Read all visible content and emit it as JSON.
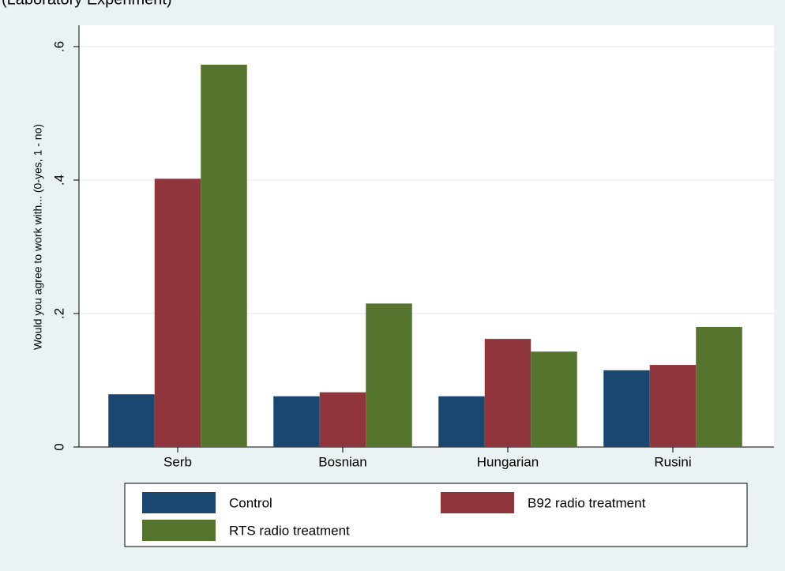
{
  "chart_data": {
    "type": "bar",
    "subtitle": "(Laboratory Experiment)",
    "y_label": "Would you agree to work with... (0-yes, 1 - no)",
    "categories": [
      "Serb",
      "Bosnian",
      "Hungarian",
      "Rusini"
    ],
    "series": [
      {
        "name": "Control",
        "color": "#1a476f",
        "values": [
          0.079,
          0.076,
          0.076,
          0.115
        ]
      },
      {
        "name": "B92 radio treatment",
        "color": "#90353b",
        "values": [
          0.402,
          0.082,
          0.162,
          0.123
        ]
      },
      {
        "name": "RTS radio treatment",
        "color": "#55752f",
        "values": [
          0.573,
          0.215,
          0.143,
          0.18
        ]
      }
    ],
    "ylim": [
      0,
      0.632
    ],
    "yticks": [
      0,
      {
        "value": 0.2,
        "label": ".2"
      },
      {
        "value": 0.4,
        "label": ".4"
      },
      {
        "value": 0.6,
        "label": ".6"
      }
    ],
    "grid": true
  }
}
